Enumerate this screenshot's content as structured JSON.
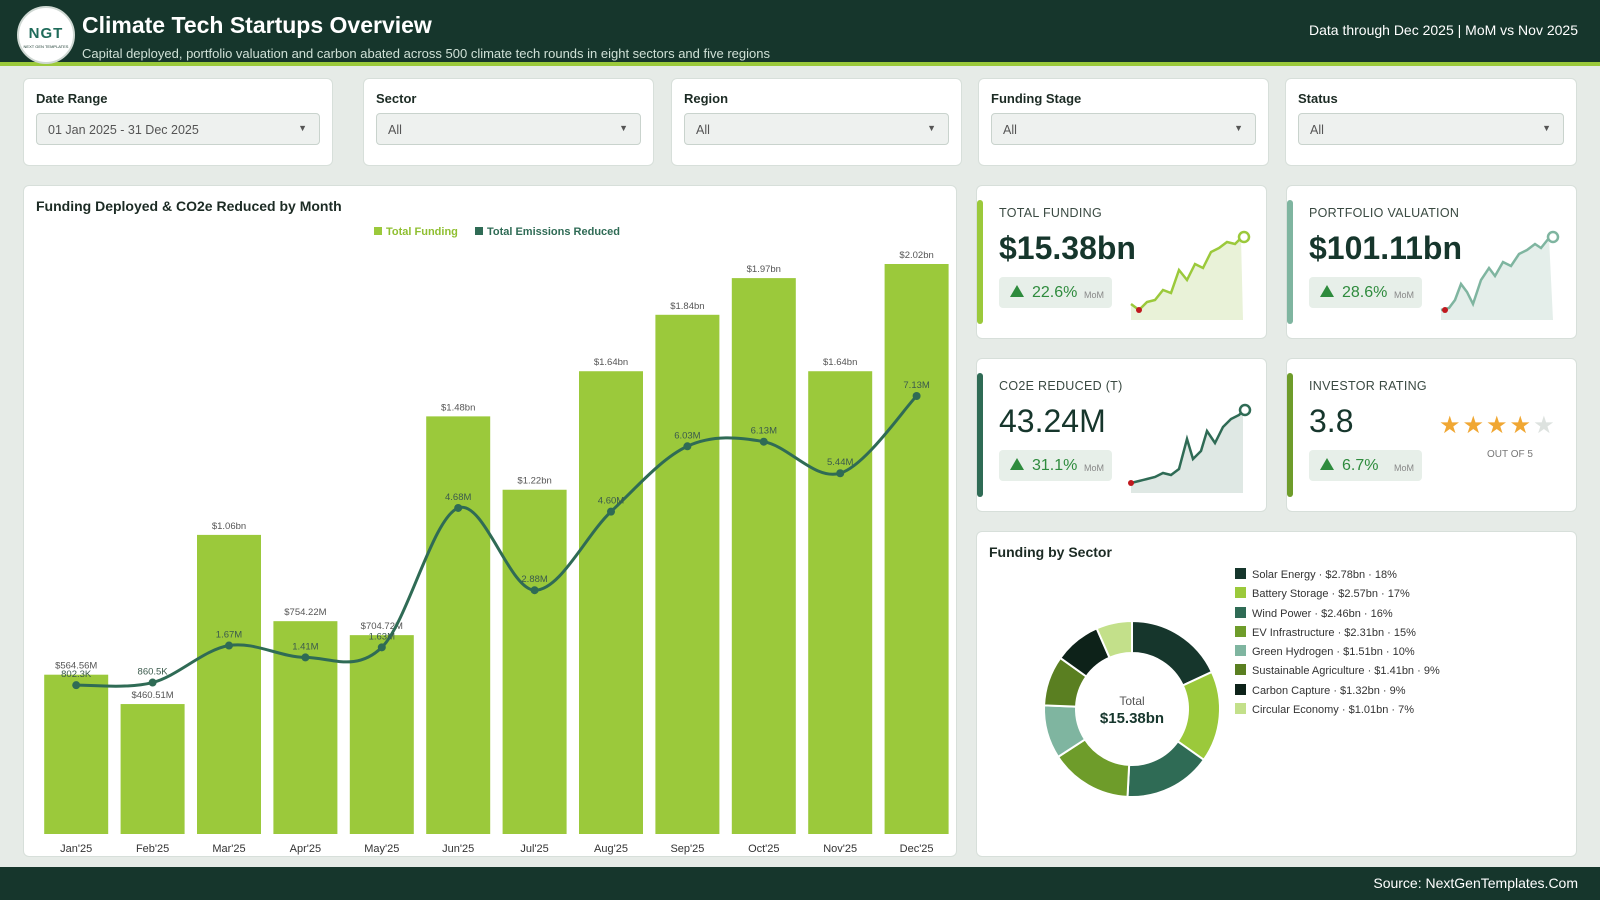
{
  "header": {
    "logo_text": "NGT",
    "logo_sub": "NEXT GEN TEMPLATES",
    "title": "Climate Tech Startups Overview",
    "subtitle": "Capital deployed, portfolio valuation and carbon abated across 500 climate tech rounds in eight sectors and five regions",
    "data_note": "Data through Dec 2025 | MoM vs Nov 2025"
  },
  "filters": [
    {
      "label": "Date Range",
      "value": "01 Jan 2025 - 31 Dec 2025"
    },
    {
      "label": "Sector",
      "value": "All"
    },
    {
      "label": "Region",
      "value": "All"
    },
    {
      "label": "Funding Stage",
      "value": "All"
    },
    {
      "label": "Status",
      "value": "All"
    }
  ],
  "kpis": [
    {
      "label": "TOTAL FUNDING",
      "value": "$15.38bn",
      "delta": "22.6%",
      "delta_suffix": "MoM",
      "accent": "#9bc93b"
    },
    {
      "label": "PORTFOLIO VALUATION",
      "value": "$101.11bn",
      "delta": "28.6%",
      "delta_suffix": "MoM",
      "accent": "#7fb5a0"
    },
    {
      "label": "CO2E REDUCED (T)",
      "value": "43.24M",
      "delta": "31.1%",
      "delta_suffix": "MoM",
      "accent": "#2f6b55"
    },
    {
      "label": "INVESTOR RATING",
      "value": "3.8",
      "delta": "6.7%",
      "delta_suffix": "MoM",
      "accent": "#6e9c2a",
      "rating": 3.8,
      "rating_out_of": "OUT OF 5"
    }
  ],
  "sector_panel": {
    "title": "Funding by Sector",
    "center_label": "Total",
    "center_value": "$15.38bn"
  },
  "footer": {
    "source": "Source: NextGenTemplates.Com"
  },
  "chart_data": [
    {
      "type": "bar",
      "title": "Funding Deployed & CO2e Reduced by Month",
      "categories": [
        "Jan'25",
        "Feb'25",
        "Mar'25",
        "Apr'25",
        "May'25",
        "Jun'25",
        "Jul'25",
        "Aug'25",
        "Sep'25",
        "Oct'25",
        "Nov'25",
        "Dec'25"
      ],
      "series": [
        {
          "name": "Total Funding",
          "chart": "bar",
          "unit": "$",
          "values": [
            0.56456,
            0.4605,
            1.06,
            0.75422,
            0.70472,
            1.48,
            1.22,
            1.64,
            1.84,
            1.97,
            1.64,
            2.02
          ],
          "labels": [
            "$564.56M",
            "$460.51M",
            "$1.06bn",
            "$754.22M",
            "$704.72M",
            "$1.48bn",
            "$1.22bn",
            "$1.64bn",
            "$1.84bn",
            "$1.97bn",
            "$1.64bn",
            "$2.02bn"
          ],
          "color": "#9bc93b"
        },
        {
          "name": "Total Emissions Reduced",
          "chart": "line",
          "unit": "t",
          "values": [
            0.8023,
            0.8605,
            1.67,
            1.41,
            1.63,
            4.68,
            2.88,
            4.6,
            6.03,
            6.13,
            5.44,
            7.13
          ],
          "labels": [
            "802.3K",
            "860.5K",
            "1.67M",
            "1.41M",
            "1.63M",
            "4.68M",
            "2.88M",
            "4.60M",
            "6.03M",
            "6.13M",
            "5.44M",
            "7.13M"
          ],
          "color": "#2f6b55"
        }
      ]
    },
    {
      "type": "pie",
      "title": "Funding by Sector",
      "slices": [
        {
          "label": "Solar Energy",
          "value": 2.78,
          "text": "Solar Energy · $2.78bn · 18%",
          "color": "#16362c"
        },
        {
          "label": "Battery Storage",
          "value": 2.57,
          "text": "Battery Storage · $2.57bn · 17%",
          "color": "#9bc93b"
        },
        {
          "label": "Wind Power",
          "value": 2.46,
          "text": "Wind Power · $2.46bn · 16%",
          "color": "#2f6b55"
        },
        {
          "label": "EV Infrastructure",
          "value": 2.31,
          "text": "EV Infrastructure · $2.31bn · 15%",
          "color": "#6e9c2a"
        },
        {
          "label": "Green Hydrogen",
          "value": 1.51,
          "text": "Green Hydrogen · $1.51bn · 10%",
          "color": "#7fb5a0"
        },
        {
          "label": "Sustainable Agriculture",
          "value": 1.41,
          "text": "Sustainable Agriculture · $1.41bn · 9%",
          "color": "#5a7f21"
        },
        {
          "label": "Carbon Capture",
          "value": 1.32,
          "text": "Carbon Capture · $1.32bn · 9%",
          "color": "#0d2219"
        },
        {
          "label": "Circular Economy",
          "value": 1.01,
          "text": "Circular Economy · $1.01bn · 7%",
          "color": "#c3e08a"
        }
      ]
    }
  ]
}
